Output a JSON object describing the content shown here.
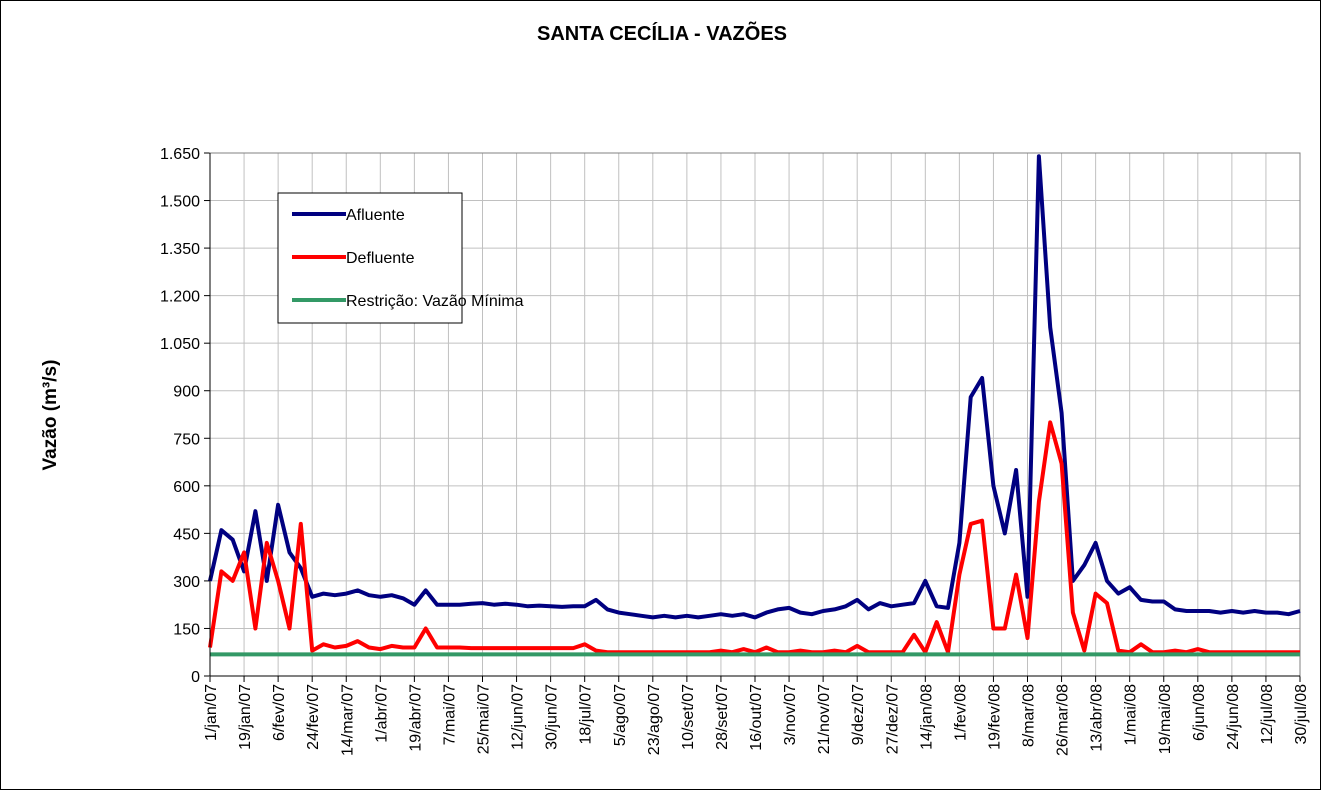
{
  "chart_data": {
    "type": "line",
    "title": "SANTA CECÍLIA - VAZÕES",
    "y_label": "Vazão (m³/s)",
    "categories": [
      "1/jan/07",
      null,
      null,
      "19/jan/07",
      null,
      null,
      "6/fev/07",
      null,
      null,
      "24/fev/07",
      null,
      null,
      "14/mar/07",
      null,
      null,
      "1/abr/07",
      null,
      null,
      "19/abr/07",
      null,
      null,
      "7/mai/07",
      null,
      null,
      "25/mai/07",
      null,
      null,
      "12/jun/07",
      null,
      null,
      "30/jun/07",
      null,
      null,
      "18/jul/07",
      null,
      null,
      "5/ago/07",
      null,
      null,
      "23/ago/07",
      null,
      null,
      "10/set/07",
      null,
      null,
      "28/set/07",
      null,
      null,
      "16/out/07",
      null,
      null,
      "3/nov/07",
      null,
      null,
      "21/nov/07",
      null,
      null,
      "9/dez/07",
      null,
      null,
      "27/dez/07",
      null,
      null,
      "14/jan/08",
      null,
      null,
      "1/fev/08",
      null,
      null,
      "19/fev/08",
      null,
      null,
      "8/mar/08",
      null,
      null,
      "26/mar/08",
      null,
      null,
      "13/abr/08",
      null,
      null,
      "1/mai/08",
      null,
      null,
      "19/mai/08",
      null,
      null,
      "6/jun/08",
      null,
      null,
      "24/jun/08",
      null,
      null,
      "12/jul/08",
      null,
      null,
      "30/jul/08"
    ],
    "series": [
      {
        "name": "Afluente",
        "color": "#000080",
        "values": [
          300,
          460,
          430,
          330,
          520,
          300,
          540,
          390,
          340,
          250,
          260,
          255,
          260,
          270,
          255,
          250,
          255,
          245,
          225,
          270,
          225,
          225,
          225,
          228,
          230,
          225,
          228,
          225,
          220,
          222,
          220,
          218,
          220,
          220,
          240,
          210,
          200,
          195,
          190,
          185,
          190,
          185,
          190,
          185,
          190,
          195,
          190,
          195,
          185,
          200,
          210,
          215,
          200,
          195,
          205,
          210,
          220,
          240,
          210,
          230,
          220,
          225,
          230,
          300,
          220,
          215,
          420,
          880,
          940,
          600,
          450,
          650,
          250,
          1640,
          1100,
          830,
          300,
          350,
          420,
          300,
          260,
          280,
          240,
          235,
          235,
          210,
          205,
          205,
          205,
          200,
          205,
          200,
          205,
          200,
          200,
          195,
          205
        ]
      },
      {
        "name": "Defluente",
        "color": "#ff0000",
        "values": [
          90,
          330,
          300,
          390,
          150,
          420,
          300,
          150,
          480,
          80,
          100,
          90,
          95,
          110,
          90,
          85,
          95,
          90,
          90,
          150,
          90,
          90,
          90,
          88,
          88,
          88,
          88,
          88,
          88,
          88,
          88,
          88,
          88,
          100,
          80,
          75,
          75,
          75,
          75,
          75,
          75,
          75,
          75,
          75,
          75,
          80,
          75,
          85,
          75,
          90,
          75,
          75,
          80,
          75,
          75,
          80,
          75,
          95,
          75,
          75,
          75,
          75,
          130,
          75,
          170,
          75,
          320,
          480,
          490,
          150,
          150,
          320,
          120,
          550,
          800,
          670,
          200,
          80,
          260,
          230,
          80,
          75,
          100,
          75,
          75,
          80,
          75,
          85,
          75,
          75,
          75,
          75,
          75,
          75,
          75,
          75,
          75
        ]
      },
      {
        "name": "Restrição: Vazão Mínima",
        "color": "#339966",
        "values": [
          68,
          68,
          68,
          68,
          68,
          68,
          68,
          68,
          68,
          68,
          68,
          68,
          68,
          68,
          68,
          68,
          68,
          68,
          68,
          68,
          68,
          68,
          68,
          68,
          68,
          68,
          68,
          68,
          68,
          68,
          68,
          68,
          68,
          68,
          68,
          68,
          68,
          68,
          68,
          68,
          68,
          68,
          68,
          68,
          68,
          68,
          68,
          68,
          68,
          68,
          68,
          68,
          68,
          68,
          68,
          68,
          68,
          68,
          68,
          68,
          68,
          68,
          68,
          68,
          68,
          68,
          68,
          68,
          68,
          68,
          68,
          68,
          68,
          68,
          68,
          68,
          68,
          68,
          68,
          68,
          68,
          68,
          68,
          68,
          68,
          68,
          68,
          68,
          68,
          68,
          68,
          68,
          68,
          68,
          68,
          68,
          68
        ]
      }
    ],
    "ylim": [
      0,
      1650
    ],
    "yticks": [
      0,
      150,
      300,
      450,
      600,
      750,
      900,
      {
        "value": 1050,
        "label": "1.050"
      },
      {
        "value": 1200,
        "label": "1.200"
      },
      {
        "value": 1350,
        "label": "1.350"
      },
      {
        "value": 1500,
        "label": "1.500"
      },
      {
        "value": 1650,
        "label": "1.650"
      }
    ],
    "grid": true,
    "legend": "upper left"
  }
}
